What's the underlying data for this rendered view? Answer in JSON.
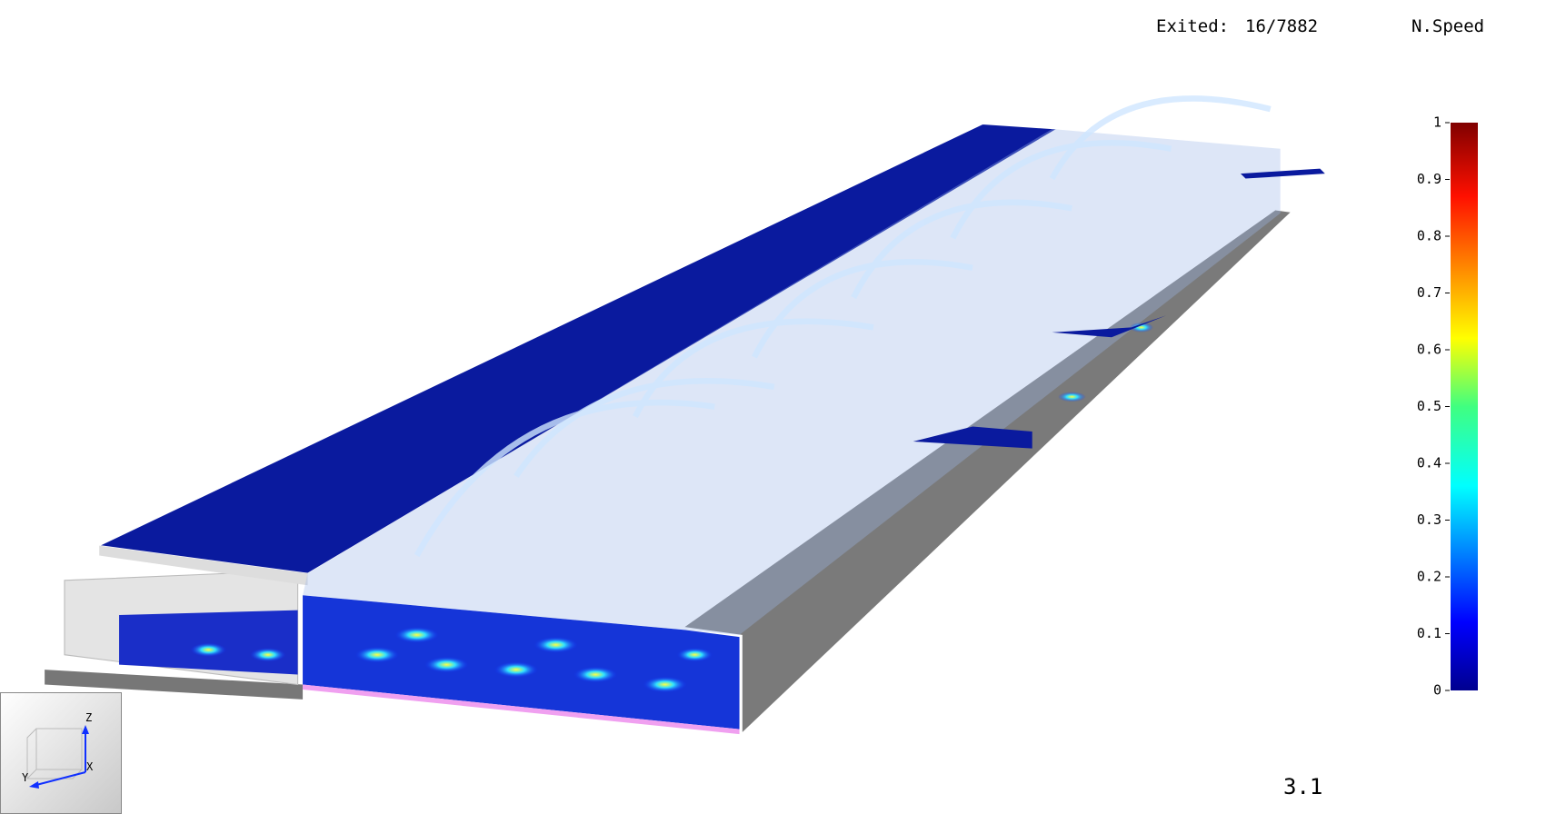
{
  "hud": {
    "exited_label": "Exited:",
    "exited_value": "16/7882",
    "time": "3.1"
  },
  "colorbar": {
    "title": "N.Speed",
    "ticks": [
      0,
      0.1,
      0.2,
      0.3,
      0.4,
      0.5,
      0.6,
      0.7,
      0.8,
      0.9,
      1
    ]
  },
  "axes_widget": {
    "z": "Z",
    "y": "Y",
    "x": "X"
  }
}
